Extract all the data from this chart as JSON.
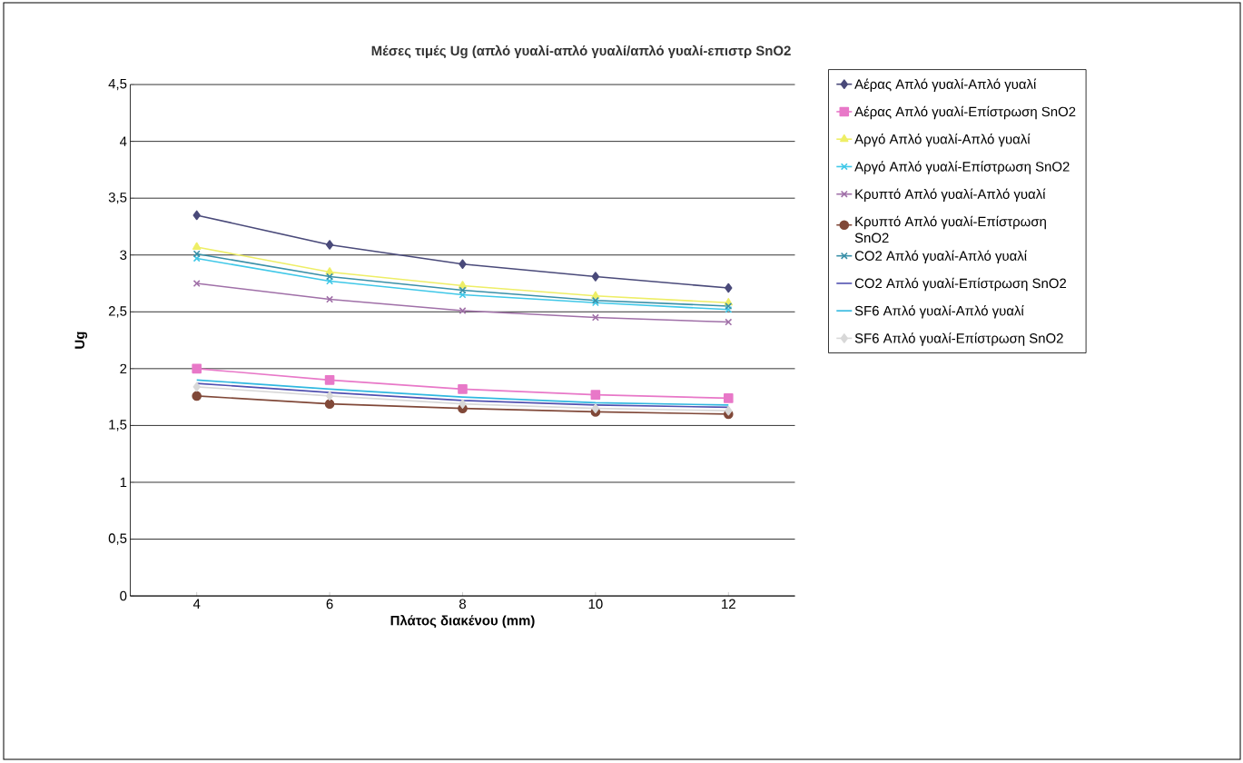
{
  "chart_data": {
    "type": "line",
    "title": "**Μέσες τιμές Ug (απλό γυαλί-απλό γυαλί/απλό γυαλί-επιστρ SnO2**",
    "xlabel": "Πλάτος διακένου (mm)",
    "ylabel": "Ug",
    "categories": [
      "4",
      "6",
      "8",
      "10",
      "12"
    ],
    "ylim": [
      0,
      4.5
    ],
    "yticks": [
      0,
      {
        "value": 0.5,
        "label": "0,5"
      },
      1,
      {
        "value": 1.5,
        "label": "1,5"
      },
      2,
      {
        "value": 2.5,
        "label": "2,5"
      },
      3,
      {
        "value": 3.5,
        "label": "3,5"
      },
      4,
      {
        "value": 4.5,
        "label": "4,5"
      }
    ],
    "grid": "y",
    "legend": "right",
    "series": [
      {
        "name": "Αέρας Απλό γυαλί-Απλό γυαλί",
        "color": "#4a4a7a",
        "marker": "diamond",
        "values": [
          3.35,
          3.09,
          2.92,
          2.81,
          2.71
        ]
      },
      {
        "name": "Αέρας Απλό γυαλί-Επίστρωση SnO2",
        "color": "#e878c8",
        "marker": "square",
        "values": [
          2.0,
          1.9,
          1.82,
          1.77,
          1.74
        ]
      },
      {
        "name": "Αργό Απλό γυαλί-Απλό γυαλί",
        "color": "#eeee66",
        "marker": "triangle",
        "values": [
          3.07,
          2.85,
          2.73,
          2.64,
          2.58
        ]
      },
      {
        "name": "Αργό Απλό γυαλί-Επίστρωση SnO2",
        "color": "#40c8e8",
        "marker": "cross",
        "values": [
          2.97,
          2.77,
          2.65,
          2.58,
          2.52
        ]
      },
      {
        "name": "Κρυπτό Απλό γυαλί-Απλό γυαλί",
        "color": "#a070a8",
        "marker": "cross",
        "values": [
          2.75,
          2.61,
          2.51,
          2.45,
          2.41
        ]
      },
      {
        "name": "Κρυπτό Απλό γυαλί-Επίστρωση  SnO2",
        "color": "#804838",
        "marker": "circle",
        "values": [
          1.76,
          1.69,
          1.65,
          1.62,
          1.6
        ]
      },
      {
        "name": "CO2 Απλό γυαλί-Απλό γυαλί",
        "color": "#3a90a8",
        "marker": "cross",
        "values": [
          3.01,
          2.81,
          2.69,
          2.6,
          2.55
        ]
      },
      {
        "name": "CO2 Απλό γυαλί-Επίστρωση SnO2",
        "color": "#5050b0",
        "marker": "none",
        "values": [
          1.87,
          1.79,
          1.72,
          1.68,
          1.66
        ]
      },
      {
        "name": "SF6 Απλό γυαλί-Απλό γυαλί",
        "color": "#30b8e0",
        "marker": "none",
        "values": [
          1.9,
          1.82,
          1.75,
          1.7,
          1.68
        ]
      },
      {
        "name": "SF6 Απλό γυαλί-Επίστρωση SnO2",
        "color": "#d8d8d8",
        "marker": "diamond",
        "values": [
          1.84,
          1.76,
          1.69,
          1.65,
          1.63
        ]
      }
    ]
  }
}
